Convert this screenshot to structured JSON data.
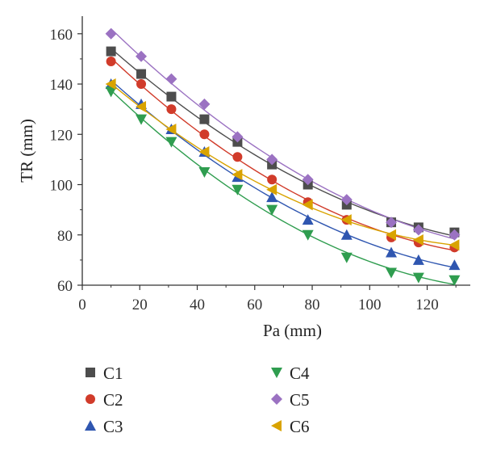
{
  "chart_data": {
    "type": "scatter",
    "xlabel": "Pa (mm)",
    "ylabel": "TR (mm)",
    "xlim": [
      0,
      135
    ],
    "ylim": [
      60,
      167
    ],
    "xticks": [
      0,
      20,
      40,
      60,
      80,
      100,
      120
    ],
    "yticks": [
      60,
      80,
      100,
      120,
      140,
      160
    ],
    "x": [
      10,
      20.5,
      31,
      42.5,
      54,
      66,
      78.5,
      92,
      107.5,
      117,
      129.5
    ],
    "grid": false,
    "legend_position": "bottom",
    "series": [
      {
        "name": "C1",
        "marker": "square",
        "color": "#4d4d4d",
        "values": [
          153,
          144,
          135,
          126,
          117,
          108,
          100,
          92,
          85,
          83,
          81
        ]
      },
      {
        "name": "C2",
        "marker": "circle",
        "color": "#d13b2a",
        "values": [
          149,
          140,
          130,
          120,
          111,
          102,
          93,
          86,
          79,
          77,
          75
        ]
      },
      {
        "name": "C3",
        "marker": "triangle-up",
        "color": "#2f56b0",
        "values": [
          140,
          132,
          122,
          113,
          103,
          95,
          86,
          80,
          73,
          70,
          68
        ]
      },
      {
        "name": "C4",
        "marker": "triangle-down",
        "color": "#2f9d4f",
        "values": [
          137,
          126,
          117,
          105,
          98,
          90,
          80,
          71,
          65,
          63,
          62
        ]
      },
      {
        "name": "C5",
        "marker": "diamond",
        "color": "#9b72c2",
        "values": [
          160,
          151,
          142,
          132,
          119,
          110,
          102,
          94,
          85,
          82,
          80
        ]
      },
      {
        "name": "C6",
        "marker": "triangle-left",
        "color": "#d9a300",
        "values": [
          140,
          131,
          122,
          113,
          104,
          98,
          92,
          86,
          80,
          78,
          76
        ]
      }
    ]
  }
}
